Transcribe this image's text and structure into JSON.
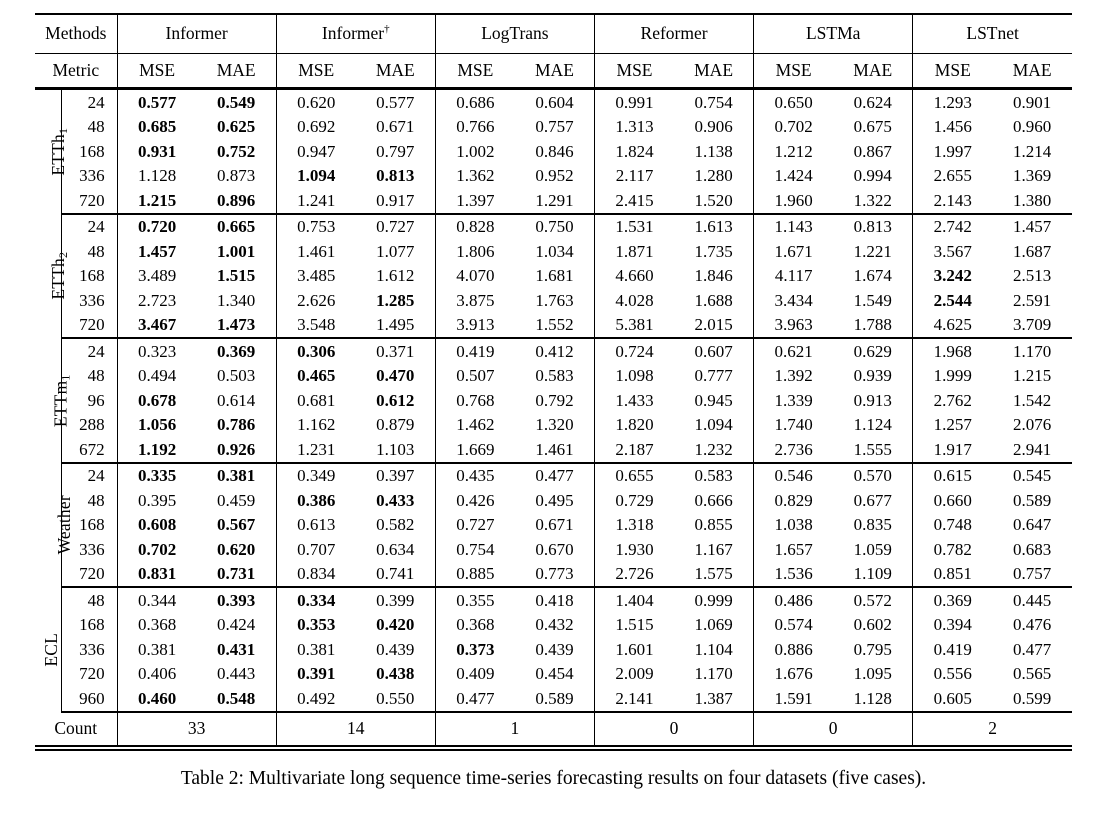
{
  "caption": "Table 2: Multivariate long sequence time-series forecasting results on four datasets (five cases).",
  "colors": {
    "text": "#000000",
    "background": "#ffffff",
    "rule": "#000000"
  },
  "table": {
    "corner_labels": {
      "methods": "Methods",
      "metric": "Metric",
      "count": "Count"
    },
    "methods": [
      {
        "name": "Informer",
        "sup": ""
      },
      {
        "name": "Informer",
        "sup": "†"
      },
      {
        "name": "LogTrans",
        "sup": ""
      },
      {
        "name": "Reformer",
        "sup": ""
      },
      {
        "name": "LSTMa",
        "sup": ""
      },
      {
        "name": "LSTnet",
        "sup": ""
      }
    ],
    "metrics": [
      "MSE",
      "MAE"
    ],
    "counts": [
      "33",
      "14",
      "1",
      "0",
      "0",
      "2"
    ],
    "groups": [
      {
        "dataset": "ETTh",
        "sub": "1",
        "rows": [
          {
            "h": "24",
            "v": [
              "0.577",
              "0.549",
              "0.620",
              "0.577",
              "0.686",
              "0.604",
              "0.991",
              "0.754",
              "0.650",
              "0.624",
              "1.293",
              "0.901"
            ],
            "bold": [
              0,
              1
            ]
          },
          {
            "h": "48",
            "v": [
              "0.685",
              "0.625",
              "0.692",
              "0.671",
              "0.766",
              "0.757",
              "1.313",
              "0.906",
              "0.702",
              "0.675",
              "1.456",
              "0.960"
            ],
            "bold": [
              0,
              1
            ]
          },
          {
            "h": "168",
            "v": [
              "0.931",
              "0.752",
              "0.947",
              "0.797",
              "1.002",
              "0.846",
              "1.824",
              "1.138",
              "1.212",
              "0.867",
              "1.997",
              "1.214"
            ],
            "bold": [
              0,
              1
            ]
          },
          {
            "h": "336",
            "v": [
              "1.128",
              "0.873",
              "1.094",
              "0.813",
              "1.362",
              "0.952",
              "2.117",
              "1.280",
              "1.424",
              "0.994",
              "2.655",
              "1.369"
            ],
            "bold": [
              2,
              3
            ]
          },
          {
            "h": "720",
            "v": [
              "1.215",
              "0.896",
              "1.241",
              "0.917",
              "1.397",
              "1.291",
              "2.415",
              "1.520",
              "1.960",
              "1.322",
              "2.143",
              "1.380"
            ],
            "bold": [
              0,
              1
            ]
          }
        ]
      },
      {
        "dataset": "ETTh",
        "sub": "2",
        "rows": [
          {
            "h": "24",
            "v": [
              "0.720",
              "0.665",
              "0.753",
              "0.727",
              "0.828",
              "0.750",
              "1.531",
              "1.613",
              "1.143",
              "0.813",
              "2.742",
              "1.457"
            ],
            "bold": [
              0,
              1
            ]
          },
          {
            "h": "48",
            "v": [
              "1.457",
              "1.001",
              "1.461",
              "1.077",
              "1.806",
              "1.034",
              "1.871",
              "1.735",
              "1.671",
              "1.221",
              "3.567",
              "1.687"
            ],
            "bold": [
              0,
              1
            ]
          },
          {
            "h": "168",
            "v": [
              "3.489",
              "1.515",
              "3.485",
              "1.612",
              "4.070",
              "1.681",
              "4.660",
              "1.846",
              "4.117",
              "1.674",
              "3.242",
              "2.513"
            ],
            "bold": [
              1,
              10
            ]
          },
          {
            "h": "336",
            "v": [
              "2.723",
              "1.340",
              "2.626",
              "1.285",
              "3.875",
              "1.763",
              "4.028",
              "1.688",
              "3.434",
              "1.549",
              "2.544",
              "2.591"
            ],
            "bold": [
              3,
              10
            ]
          },
          {
            "h": "720",
            "v": [
              "3.467",
              "1.473",
              "3.548",
              "1.495",
              "3.913",
              "1.552",
              "5.381",
              "2.015",
              "3.963",
              "1.788",
              "4.625",
              "3.709"
            ],
            "bold": [
              0,
              1
            ]
          }
        ]
      },
      {
        "dataset": "ETTm",
        "sub": "1",
        "rows": [
          {
            "h": "24",
            "v": [
              "0.323",
              "0.369",
              "0.306",
              "0.371",
              "0.419",
              "0.412",
              "0.724",
              "0.607",
              "0.621",
              "0.629",
              "1.968",
              "1.170"
            ],
            "bold": [
              1,
              2
            ]
          },
          {
            "h": "48",
            "v": [
              "0.494",
              "0.503",
              "0.465",
              "0.470",
              "0.507",
              "0.583",
              "1.098",
              "0.777",
              "1.392",
              "0.939",
              "1.999",
              "1.215"
            ],
            "bold": [
              2,
              3
            ]
          },
          {
            "h": "96",
            "v": [
              "0.678",
              "0.614",
              "0.681",
              "0.612",
              "0.768",
              "0.792",
              "1.433",
              "0.945",
              "1.339",
              "0.913",
              "2.762",
              "1.542"
            ],
            "bold": [
              0,
              3
            ]
          },
          {
            "h": "288",
            "v": [
              "1.056",
              "0.786",
              "1.162",
              "0.879",
              "1.462",
              "1.320",
              "1.820",
              "1.094",
              "1.740",
              "1.124",
              "1.257",
              "2.076"
            ],
            "bold": [
              0,
              1
            ]
          },
          {
            "h": "672",
            "v": [
              "1.192",
              "0.926",
              "1.231",
              "1.103",
              "1.669",
              "1.461",
              "2.187",
              "1.232",
              "2.736",
              "1.555",
              "1.917",
              "2.941"
            ],
            "bold": [
              0,
              1
            ]
          }
        ]
      },
      {
        "dataset": "Weather",
        "sub": "",
        "rows": [
          {
            "h": "24",
            "v": [
              "0.335",
              "0.381",
              "0.349",
              "0.397",
              "0.435",
              "0.477",
              "0.655",
              "0.583",
              "0.546",
              "0.570",
              "0.615",
              "0.545"
            ],
            "bold": [
              0,
              1
            ]
          },
          {
            "h": "48",
            "v": [
              "0.395",
              "0.459",
              "0.386",
              "0.433",
              "0.426",
              "0.495",
              "0.729",
              "0.666",
              "0.829",
              "0.677",
              "0.660",
              "0.589"
            ],
            "bold": [
              2,
              3
            ]
          },
          {
            "h": "168",
            "v": [
              "0.608",
              "0.567",
              "0.613",
              "0.582",
              "0.727",
              "0.671",
              "1.318",
              "0.855",
              "1.038",
              "0.835",
              "0.748",
              "0.647"
            ],
            "bold": [
              0,
              1
            ]
          },
          {
            "h": "336",
            "v": [
              "0.702",
              "0.620",
              "0.707",
              "0.634",
              "0.754",
              "0.670",
              "1.930",
              "1.167",
              "1.657",
              "1.059",
              "0.782",
              "0.683"
            ],
            "bold": [
              0,
              1
            ]
          },
          {
            "h": "720",
            "v": [
              "0.831",
              "0.731",
              "0.834",
              "0.741",
              "0.885",
              "0.773",
              "2.726",
              "1.575",
              "1.536",
              "1.109",
              "0.851",
              "0.757"
            ],
            "bold": [
              0,
              1
            ]
          }
        ]
      },
      {
        "dataset": "ECL",
        "sub": "",
        "rows": [
          {
            "h": "48",
            "v": [
              "0.344",
              "0.393",
              "0.334",
              "0.399",
              "0.355",
              "0.418",
              "1.404",
              "0.999",
              "0.486",
              "0.572",
              "0.369",
              "0.445"
            ],
            "bold": [
              1,
              2
            ]
          },
          {
            "h": "168",
            "v": [
              "0.368",
              "0.424",
              "0.353",
              "0.420",
              "0.368",
              "0.432",
              "1.515",
              "1.069",
              "0.574",
              "0.602",
              "0.394",
              "0.476"
            ],
            "bold": [
              2,
              3
            ]
          },
          {
            "h": "336",
            "v": [
              "0.381",
              "0.431",
              "0.381",
              "0.439",
              "0.373",
              "0.439",
              "1.601",
              "1.104",
              "0.886",
              "0.795",
              "0.419",
              "0.477"
            ],
            "bold": [
              1,
              4
            ]
          },
          {
            "h": "720",
            "v": [
              "0.406",
              "0.443",
              "0.391",
              "0.438",
              "0.409",
              "0.454",
              "2.009",
              "1.170",
              "1.676",
              "1.095",
              "0.556",
              "0.565"
            ],
            "bold": [
              2,
              3
            ]
          },
          {
            "h": "960",
            "v": [
              "0.460",
              "0.548",
              "0.492",
              "0.550",
              "0.477",
              "0.589",
              "2.141",
              "1.387",
              "1.591",
              "1.128",
              "0.605",
              "0.599"
            ],
            "bold": [
              0,
              1
            ]
          }
        ]
      }
    ]
  }
}
